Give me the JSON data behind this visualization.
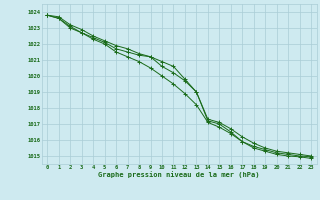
{
  "title": "Graphe pression niveau de la mer (hPa)",
  "bg_color": "#ceeaf0",
  "grid_color": "#aacdd6",
  "line_color": "#1a6b1a",
  "ylim": [
    1014.5,
    1024.5
  ],
  "y_ticks": [
    1015,
    1016,
    1017,
    1018,
    1019,
    1020,
    1021,
    1022,
    1023,
    1024
  ],
  "x_ticks": [
    0,
    1,
    2,
    3,
    4,
    5,
    6,
    7,
    8,
    9,
    10,
    11,
    12,
    13,
    14,
    15,
    16,
    17,
    18,
    19,
    20,
    21,
    22,
    23
  ],
  "hours": [
    0,
    1,
    2,
    3,
    4,
    5,
    6,
    7,
    8,
    9,
    10,
    11,
    12,
    13,
    14,
    15,
    16,
    17,
    18,
    19,
    20,
    21,
    22,
    23
  ],
  "line1": [
    1023.8,
    1023.7,
    1023.2,
    1022.9,
    1022.5,
    1022.2,
    1021.9,
    1021.7,
    1021.4,
    1021.2,
    1020.6,
    1020.2,
    1019.7,
    1019.0,
    1017.3,
    1017.1,
    1016.7,
    1016.2,
    1015.8,
    1015.5,
    1015.3,
    1015.2,
    1015.1,
    1015.0
  ],
  "line2": [
    1023.8,
    1023.6,
    1023.1,
    1022.7,
    1022.4,
    1022.1,
    1021.7,
    1021.5,
    1021.3,
    1021.2,
    1020.9,
    1020.6,
    1019.8,
    1019.0,
    1017.2,
    1017.0,
    1016.5,
    1015.9,
    1015.6,
    1015.4,
    1015.2,
    1015.1,
    1015.0,
    1014.95
  ],
  "line3": [
    1023.8,
    1023.6,
    1023.0,
    1022.7,
    1022.3,
    1022.0,
    1021.5,
    1021.2,
    1020.9,
    1020.5,
    1020.0,
    1019.5,
    1018.9,
    1018.2,
    1017.1,
    1016.8,
    1016.4,
    1015.9,
    1015.5,
    1015.3,
    1015.1,
    1015.0,
    1014.95,
    1014.85
  ]
}
